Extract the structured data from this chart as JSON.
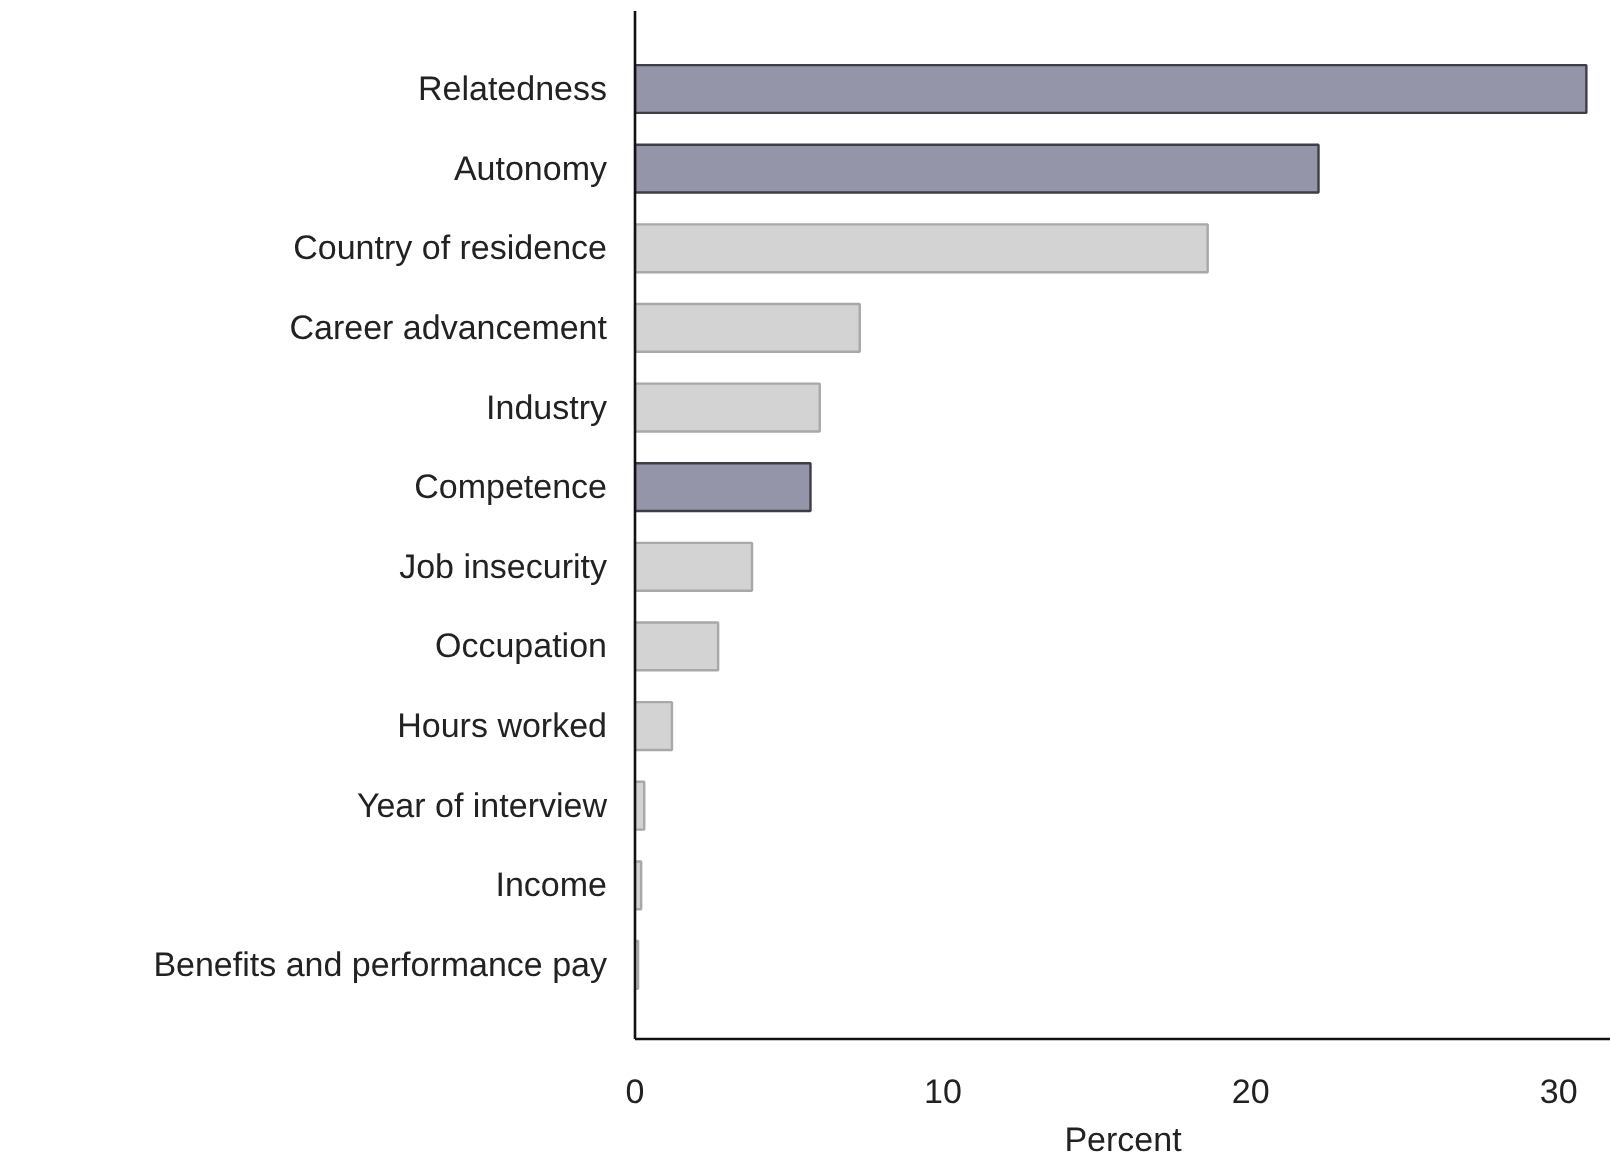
{
  "chart_data": {
    "type": "bar",
    "orientation": "horizontal",
    "xlabel": "Percent",
    "categories": [
      "Relatedness",
      "Autonomy",
      "Country of residence",
      "Career advancement",
      "Industry",
      "Competence",
      "Job insecurity",
      "Occupation",
      "Hours worked",
      "Year of interview",
      "Income",
      "Benefits and performance pay"
    ],
    "values": [
      30.9,
      22.2,
      18.6,
      7.3,
      6.0,
      5.7,
      3.8,
      2.7,
      1.2,
      0.3,
      0.2,
      0.1
    ],
    "colors": [
      "#9595aa",
      "#9595aa",
      "#d3d3d3",
      "#d3d3d3",
      "#d3d3d3",
      "#9595aa",
      "#d3d3d3",
      "#d3d3d3",
      "#d3d3d3",
      "#d3d3d3",
      "#d3d3d3",
      "#d3d3d3"
    ],
    "xlim": [
      0,
      31.7
    ],
    "xticks": [
      0,
      10,
      20,
      30
    ],
    "grid": false
  }
}
